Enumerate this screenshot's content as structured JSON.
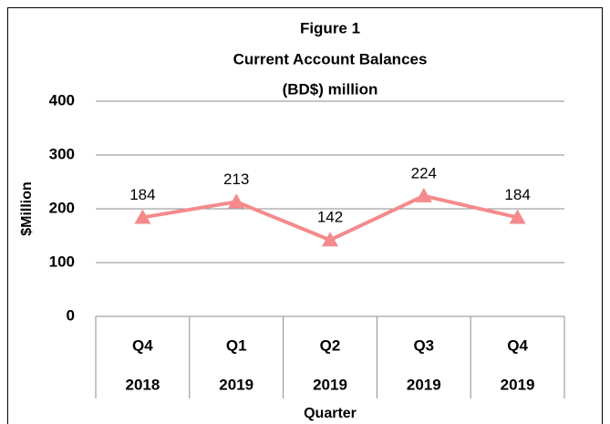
{
  "chart_data": {
    "type": "line",
    "title": [
      "Figure 1",
      "Current Account Balances",
      "(BD$) million"
    ],
    "xlabel": "Quarter",
    "ylabel": "$Million",
    "categories": [
      [
        "Q4",
        "2018"
      ],
      [
        "Q1",
        "2019"
      ],
      [
        "Q2",
        "2019"
      ],
      [
        "Q3",
        "2019"
      ],
      [
        "Q4",
        "2019"
      ]
    ],
    "values": [
      184,
      213,
      142,
      224,
      184
    ],
    "color": "#f48a8c",
    "ylim": [
      0,
      400
    ],
    "yticks": [
      0,
      100,
      200,
      300,
      400
    ],
    "grid": true
  }
}
